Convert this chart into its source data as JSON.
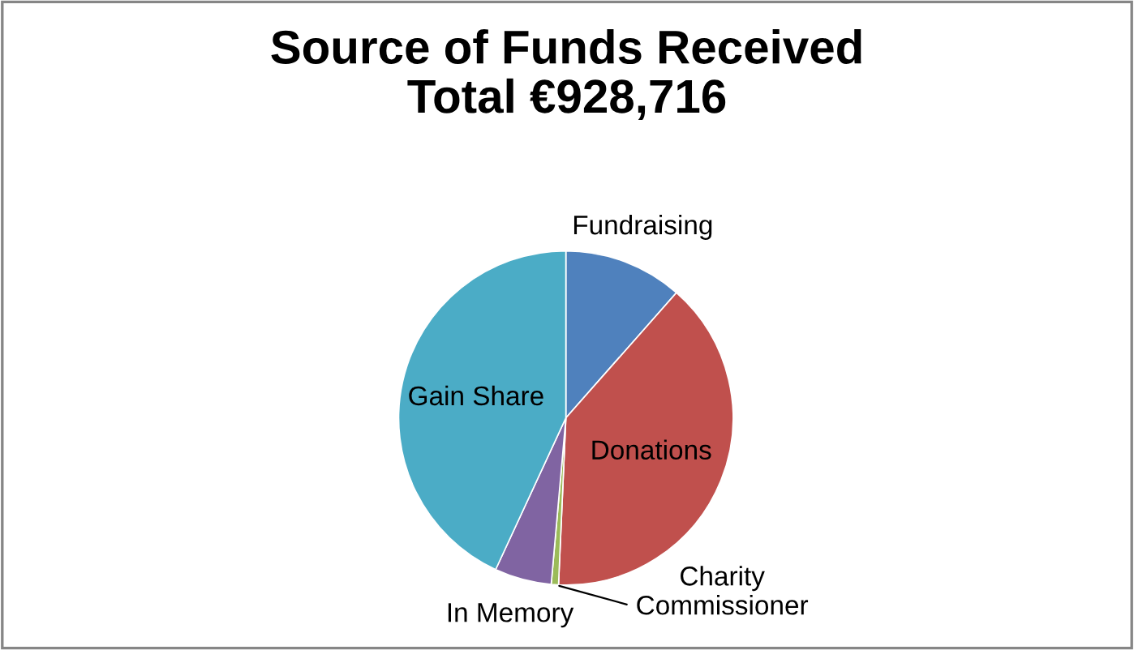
{
  "chart_data": {
    "type": "pie",
    "title": "Source of Funds Received\nTotal €928,716",
    "categories": [
      "Fundraising",
      "Donations",
      "Charity\nCommissioner",
      "In Memory",
      "Gain Share"
    ],
    "values": [
      11.5,
      39.2,
      0.7,
      5.5,
      43.1
    ],
    "colors": [
      "#4f81bd",
      "#c0504d",
      "#9bbb59",
      "#8064a2",
      "#4bacc6"
    ],
    "legend": false
  }
}
